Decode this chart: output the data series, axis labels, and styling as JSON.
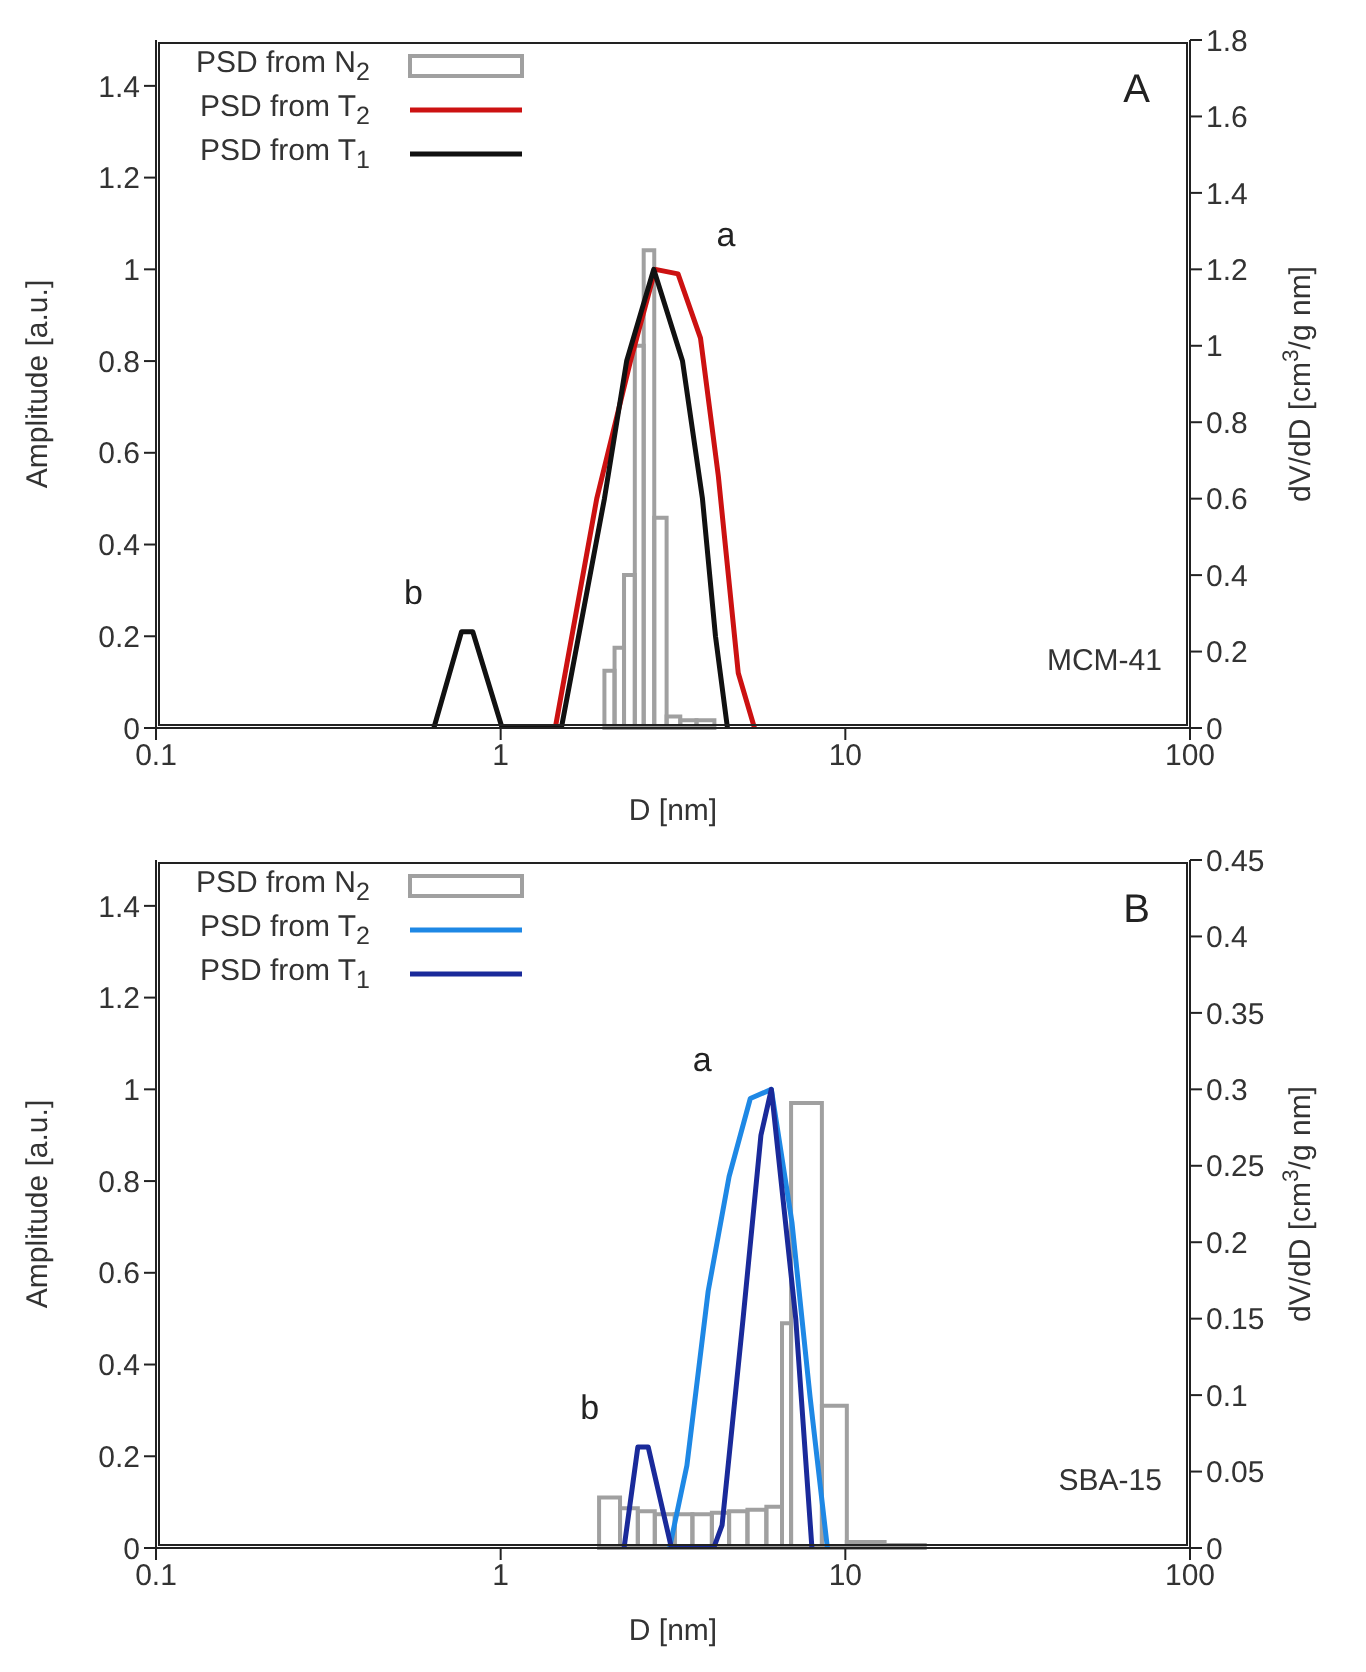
{
  "chart_data": [
    {
      "type": "line",
      "xlabel": "D [nm]",
      "ylabel": "Amplitude [a.u.]",
      "y2label": "dV/dD [cm$^{3}$/g nm]",
      "log": "x",
      "xlim": [
        0.1,
        100
      ],
      "xticks": [
        0.1,
        1,
        10,
        100
      ],
      "ylim": [
        0,
        1.5
      ],
      "yticks": [
        0,
        0.2,
        0.4,
        0.6,
        0.8,
        1,
        1.2,
        1.4
      ],
      "y2lim": [
        0,
        1.8
      ],
      "y2ticks": [
        0,
        0.2,
        0.4,
        0.6,
        0.8,
        1,
        1.2,
        1.4,
        1.6,
        1.8
      ],
      "grid": false,
      "legend": "top left",
      "marker": "none",
      "line_style": "solid",
      "series": [
        {
          "name": "PSD from N$_{2}$",
          "type": "histogram",
          "axis": "y2",
          "color": "#a0a0a0",
          "bins": [
            2.0,
            2.14,
            2.28,
            2.45,
            2.6,
            2.79,
            3.03,
            3.32,
            3.7,
            4.17
          ],
          "values": [
            0.15,
            0.21,
            0.4,
            1.0,
            1.25,
            0.55,
            0.03,
            0.02,
            0.02
          ]
        },
        {
          "name": "PSD from T$_{2}$",
          "color": "#cc1111",
          "x": [
            1.44,
            1.9,
            2.38,
            2.81,
            3.27,
            3.8,
            4.28,
            4.89,
            5.45
          ],
          "values": [
            0,
            0.5,
            0.8,
            1.0,
            0.99,
            0.85,
            0.55,
            0.12,
            0
          ]
        },
        {
          "name": "PSD from T$_{1}$",
          "color": "#111111",
          "x": [
            0.64,
            0.77,
            0.83,
            1.01,
            1.5,
            2.0,
            2.32,
            2.78,
            3.37,
            3.85,
            4.2,
            4.55
          ],
          "values": [
            0,
            0.21,
            0.21,
            0,
            0,
            0.5,
            0.8,
            1.0,
            0.8,
            0.5,
            0.2,
            0
          ]
        }
      ],
      "annotations": [
        "A",
        "MCM-41",
        {
          "text": "a",
          "x": 3.27,
          "y": 0.99
        },
        {
          "text": "b",
          "x": 0.77,
          "y": 0.21
        }
      ]
    },
    {
      "type": "line",
      "xlabel": "D [nm]",
      "ylabel": "Amplitude [a.u.]",
      "y2label": "dV/dD [cm$^{3}$/g nm]",
      "log": "x",
      "xlim": [
        0.1,
        100
      ],
      "xticks": [
        0.1,
        1,
        10,
        100
      ],
      "ylim": [
        0,
        1.5
      ],
      "yticks": [
        0,
        0.2,
        0.4,
        0.6,
        0.8,
        1,
        1.2,
        1.4
      ],
      "y2lim": [
        0,
        0.45
      ],
      "y2ticks": [
        0,
        0.05,
        0.1,
        0.15,
        0.2,
        0.25,
        0.3,
        0.35,
        0.4,
        0.45
      ],
      "grid": false,
      "legend": "top left",
      "marker": "none",
      "line_style": "solid",
      "series": [
        {
          "name": "PSD from N$_{2}$",
          "type": "histogram",
          "axis": "y2",
          "color": "#a0a0a0",
          "bins": [
            1.93,
            2.22,
            2.5,
            2.8,
            3.2,
            3.6,
            4.1,
            4.6,
            5.2,
            5.9,
            6.55,
            6.96,
            8.55,
            10.1,
            13,
            17
          ],
          "values": [
            0.033,
            0.026,
            0.024,
            0.022,
            0.022,
            0.022,
            0.023,
            0.024,
            0.025,
            0.027,
            0.147,
            0.291,
            0.093,
            0.004,
            0.002
          ]
        },
        {
          "name": "PSD from T$_{2}$",
          "color": "#1e88e5",
          "x": [
            3.09,
            3.47,
            4.0,
            4.6,
            5.3,
            6.1,
            7.0,
            7.9,
            8.87
          ],
          "values": [
            0,
            0.18,
            0.56,
            0.81,
            0.98,
            1.0,
            0.71,
            0.33,
            0
          ]
        },
        {
          "name": "PSD from T$_{1}$",
          "color": "#1a2a9a",
          "x": [
            2.28,
            2.5,
            2.68,
            3.13,
            4.15,
            4.39,
            5.05,
            5.69,
            6.1,
            7.18,
            8.0
          ],
          "values": [
            0,
            0.22,
            0.22,
            0,
            0,
            0.05,
            0.5,
            0.9,
            1.0,
            0.5,
            0
          ]
        }
      ],
      "annotations": [
        "B",
        "SBA-15",
        {
          "text": "a",
          "x": 5.3,
          "y": 0.98
        },
        {
          "text": "b",
          "x": 2.5,
          "y": 0.22
        }
      ]
    }
  ]
}
